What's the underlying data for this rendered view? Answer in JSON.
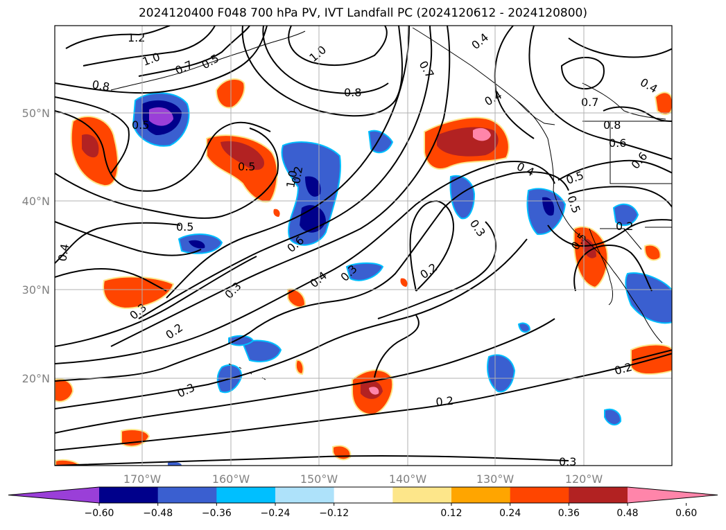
{
  "title": "2024120400 F048 700 hPa PV, IVT Landfall PC (2024120612 - 2024120800)",
  "axes": {
    "lon_ticks": [
      "170°W",
      "160°W",
      "150°W",
      "140°W",
      "130°W",
      "120°W"
    ],
    "lat_ticks": [
      "50°N",
      "40°N",
      "30°N",
      "20°N"
    ]
  },
  "colorbar": {
    "ticks": [
      "−0.60",
      "−0.48",
      "−0.36",
      "−0.24",
      "−0.12",
      "0.12",
      "0.24",
      "0.36",
      "0.48",
      "0.60"
    ],
    "colors": [
      "#9a3fd8",
      "#00008b",
      "#3a5fd0",
      "#00bfff",
      "#aee2fa",
      "#ffffff",
      "#fde68a",
      "#ffa500",
      "#ff4500",
      "#b22222",
      "#ff85aa"
    ]
  },
  "contour_labels": [
    "1.2",
    "1.0",
    "0.7",
    "0.5",
    "0.8",
    "1.0",
    "0.8",
    "0.7",
    "0.4",
    "0.4",
    "0.4",
    "0.7",
    "0.8",
    "0.6",
    "0.6",
    "0.5",
    "0.5",
    "0.4",
    "0.3",
    "0.5",
    "0.4",
    "0.5",
    "0.6",
    "0.4",
    "0.3",
    "0.3",
    "0.2",
    "0.5",
    "0.2",
    "0.3",
    "0.2",
    "0.3",
    "0.2",
    "0.2",
    "0.3",
    "1.0",
    "0.5",
    "0.2"
  ]
}
